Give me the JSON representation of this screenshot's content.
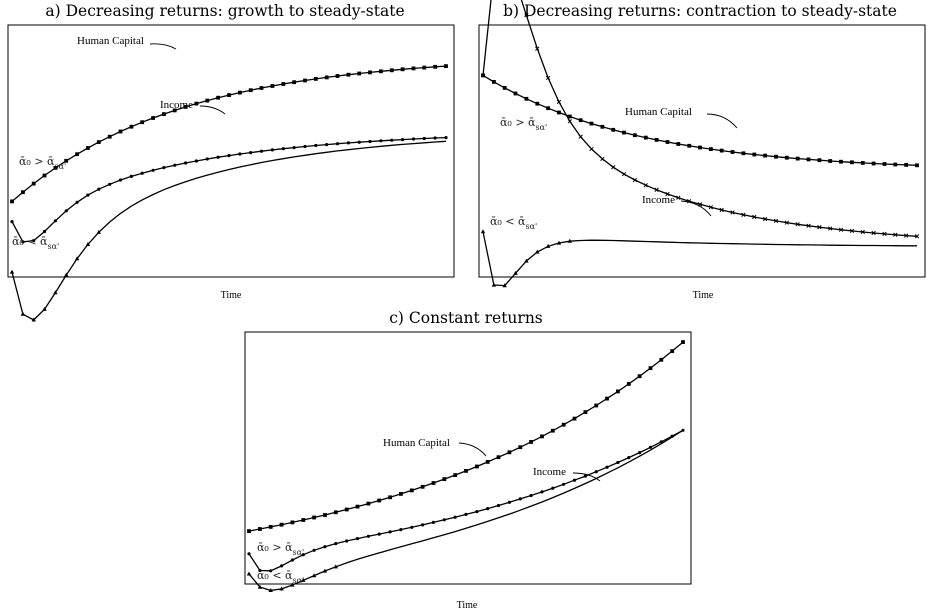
{
  "chart_data": [
    {
      "type": "line",
      "title": "a) Decreasing returns: growth to steady-state",
      "xlabel": "Time",
      "ylabel": "",
      "series": [
        {
          "name": "Human Capital",
          "marker": "square",
          "start": 0.3,
          "end": 0.88,
          "rate": 0.065
        },
        {
          "name": "Income",
          "marker": "circle",
          "start": 0.22,
          "end": 0.58,
          "rate": 0.065,
          "dip": -0.12,
          "dip_rate": 0.55
        },
        {
          "marker": "triangle",
          "start": 0.02,
          "end": 0.58,
          "rate": 0.065,
          "dip": -0.26,
          "dip_rate": 0.45
        }
      ],
      "annotations": [
        {
          "text": "Human Capital",
          "series": "Human Capital"
        },
        {
          "text": "Income",
          "series": "Income"
        },
        {
          "text": "ᾱ₀ > ᾱ",
          "sub": "sα'"
        },
        {
          "text": "ᾱ₀ < ᾱ",
          "sub": "sα'"
        }
      ]
    },
    {
      "type": "line",
      "title": "b) Decreasing returns: contraction to steady-state",
      "xlabel": "Time",
      "ylabel": "",
      "series": [
        {
          "name": "Human Capital",
          "marker": "square",
          "start": 0.8,
          "end": 0.42,
          "rate": 0.07
        },
        {
          "name": "Income",
          "marker": "cross",
          "start": 0.8,
          "end": 0.12,
          "rate": 0.07,
          "dip": 0.55,
          "dip_rate": 0.5
        },
        {
          "marker": "triangle",
          "start": 0.18,
          "end": 0.12,
          "rate": 0.07,
          "dip": -0.22,
          "dip_rate": 0.7
        }
      ],
      "annotations": [
        {
          "text": "Human Capital",
          "series": "Human Capital"
        },
        {
          "text": "Income",
          "series": "Income"
        },
        {
          "text": "ᾱ₀ > ᾱ",
          "sub": "sα'"
        },
        {
          "text": "ᾱ₀ < ᾱ",
          "sub": "sα'"
        }
      ]
    },
    {
      "type": "line",
      "title": "c) Constant returns",
      "xlabel": "Time",
      "ylabel": "",
      "series": [
        {
          "name": "Human Capital",
          "marker": "square",
          "start": 0.21,
          "end": 0.96,
          "growth": 0.038
        },
        {
          "name": "Income",
          "marker": "circle",
          "start": 0.12,
          "end": 0.61,
          "growth": 0.038,
          "dip": -0.08,
          "dip_rate": 0.6
        },
        {
          "marker": "triangle",
          "start": 0.04,
          "end": 0.61,
          "growth": 0.038,
          "dip": -0.08,
          "dip_rate": 0.4
        }
      ],
      "annotations": [
        {
          "text": "Human Capital",
          "series": "Human Capital"
        },
        {
          "text": "Income",
          "series": "Income"
        },
        {
          "text": "ᾱ₀ > ᾱ",
          "sub": "sα'"
        },
        {
          "text": "ᾱ₀ < ᾱ",
          "sub": "sα'"
        }
      ]
    }
  ]
}
